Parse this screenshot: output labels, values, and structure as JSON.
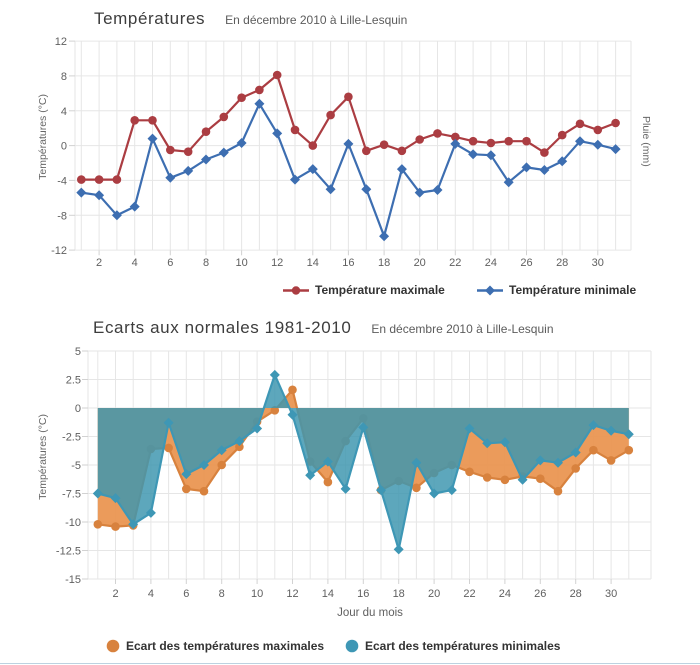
{
  "chart_data": [
    {
      "type": "line",
      "title": "Températures",
      "subtitle": "En décembre 2010 à Lille-Lesquin",
      "xlabel": "",
      "ylabel_left": "Températures (°C)",
      "ylabel_right": "Pluie (mm)",
      "ylim": [
        -12,
        12
      ],
      "yticks": [
        12,
        8,
        4,
        0,
        -4,
        -8,
        -12
      ],
      "xticks": [
        2,
        4,
        6,
        8,
        10,
        12,
        14,
        16,
        18,
        20,
        22,
        24,
        26,
        28,
        30
      ],
      "x_days": [
        1,
        2,
        3,
        4,
        5,
        6,
        7,
        8,
        9,
        10,
        11,
        12,
        13,
        14,
        15,
        16,
        17,
        18,
        19,
        20,
        21,
        22,
        23,
        24,
        25,
        26,
        27,
        28,
        29,
        30,
        31
      ],
      "grid": true,
      "legend_position": "bottom",
      "series": [
        {
          "name": "Température maximale",
          "color": "#ab3d42",
          "marker": "circle",
          "values": [
            -3.9,
            -3.9,
            -3.9,
            2.9,
            2.9,
            -0.5,
            -0.7,
            1.6,
            3.3,
            5.5,
            6.4,
            8.1,
            1.8,
            0,
            3.5,
            5.6,
            -0.6,
            0.1,
            -0.6,
            0.7,
            1.4,
            1,
            0.5,
            0.3,
            0.5,
            0.5,
            -0.8,
            1.2,
            2.5,
            1.8,
            2.6
          ]
        },
        {
          "name": "Température minimale",
          "color": "#3d6eb1",
          "marker": "diamond",
          "values": [
            -5.4,
            -5.7,
            -8,
            -7,
            0.8,
            -3.7,
            -2.9,
            -1.6,
            -0.8,
            0.3,
            4.8,
            1.4,
            -3.9,
            -2.7,
            -5,
            0.2,
            -5,
            -10.4,
            -2.7,
            -5.4,
            -5.1,
            0.2,
            -1,
            -1.1,
            -4.2,
            -2.5,
            -2.8,
            -1.8,
            0.5,
            0.1,
            -0.4
          ]
        }
      ]
    },
    {
      "type": "area",
      "title": "Ecarts aux normales 1981-2010",
      "subtitle": "En décembre 2010 à Lille-Lesquin",
      "xlabel": "Jour du mois",
      "ylabel_left": "Températures (°C)",
      "ylim": [
        -15,
        5
      ],
      "yticks": [
        5,
        2.5,
        0,
        -2.5,
        -5,
        -7.5,
        -10,
        -12.5,
        -15
      ],
      "xticks": [
        2,
        4,
        6,
        8,
        10,
        12,
        14,
        16,
        18,
        20,
        22,
        24,
        26,
        28,
        30
      ],
      "x_days": [
        1,
        2,
        3,
        4,
        5,
        6,
        7,
        8,
        9,
        10,
        11,
        12,
        13,
        14,
        15,
        16,
        17,
        18,
        19,
        20,
        21,
        22,
        23,
        24,
        25,
        26,
        27,
        28,
        29,
        30,
        31
      ],
      "grid": true,
      "legend_position": "bottom",
      "series": [
        {
          "name": "Ecart des températures maximales",
          "color": "#d8823e",
          "fill": "rgba(234,151,84,0.96)",
          "marker": "circle",
          "values": [
            -10.2,
            -10.4,
            -10.3,
            -3.6,
            -3.5,
            -7.1,
            -7.3,
            -5,
            -3.4,
            -1.2,
            -0.2,
            1.6,
            -4.7,
            -6.5,
            -2.9,
            -0.9,
            -7.2,
            -6.4,
            -7,
            -5.7,
            -5,
            -5.6,
            -6.1,
            -6.3,
            -6,
            -6.2,
            -7.3,
            -5.3,
            -3.7,
            -4.6,
            -3.7
          ]
        },
        {
          "name": "Ecart des températures minimales",
          "color": "#3e97b5",
          "fill": "rgba(62,150,175,0.84)",
          "marker": "diamond",
          "values": [
            -7.5,
            -7.9,
            -10.2,
            -9.2,
            -1.3,
            -5.8,
            -5,
            -3.7,
            -2.9,
            -1.8,
            2.9,
            -0.6,
            -5.9,
            -4.7,
            -7.1,
            -1.7,
            -7.2,
            -12.4,
            -4.8,
            -7.5,
            -7.2,
            -1.8,
            -3.1,
            -3,
            -6.3,
            -4.6,
            -4.8,
            -3.9,
            -1.5,
            -2,
            -2.3
          ]
        }
      ]
    }
  ]
}
